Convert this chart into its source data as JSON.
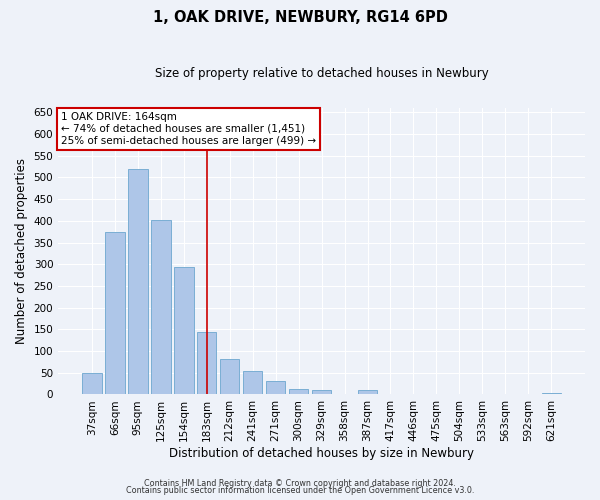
{
  "title": "1, OAK DRIVE, NEWBURY, RG14 6PD",
  "subtitle": "Size of property relative to detached houses in Newbury",
  "xlabel": "Distribution of detached houses by size in Newbury",
  "ylabel": "Number of detached properties",
  "bar_labels": [
    "37sqm",
    "66sqm",
    "95sqm",
    "125sqm",
    "154sqm",
    "183sqm",
    "212sqm",
    "241sqm",
    "271sqm",
    "300sqm",
    "329sqm",
    "358sqm",
    "387sqm",
    "417sqm",
    "446sqm",
    "475sqm",
    "504sqm",
    "533sqm",
    "563sqm",
    "592sqm",
    "621sqm"
  ],
  "bar_values": [
    50,
    375,
    520,
    403,
    293,
    143,
    82,
    54,
    30,
    13,
    10,
    0,
    11,
    0,
    0,
    0,
    0,
    0,
    0,
    0,
    3
  ],
  "bar_color": "#aec6e8",
  "bar_edgecolor": "#7aaed4",
  "vline_x": 5.0,
  "vline_color": "#cc0000",
  "annotation_text": "1 OAK DRIVE: 164sqm\n← 74% of detached houses are smaller (1,451)\n25% of semi-detached houses are larger (499) →",
  "annotation_boxcolor": "white",
  "annotation_edgecolor": "#cc0000",
  "ylim": [
    0,
    660
  ],
  "yticks": [
    0,
    50,
    100,
    150,
    200,
    250,
    300,
    350,
    400,
    450,
    500,
    550,
    600,
    650
  ],
  "background_color": "#eef2f9",
  "grid_color": "white",
  "footer_line1": "Contains HM Land Registry data © Crown copyright and database right 2024.",
  "footer_line2": "Contains public sector information licensed under the Open Government Licence v3.0."
}
